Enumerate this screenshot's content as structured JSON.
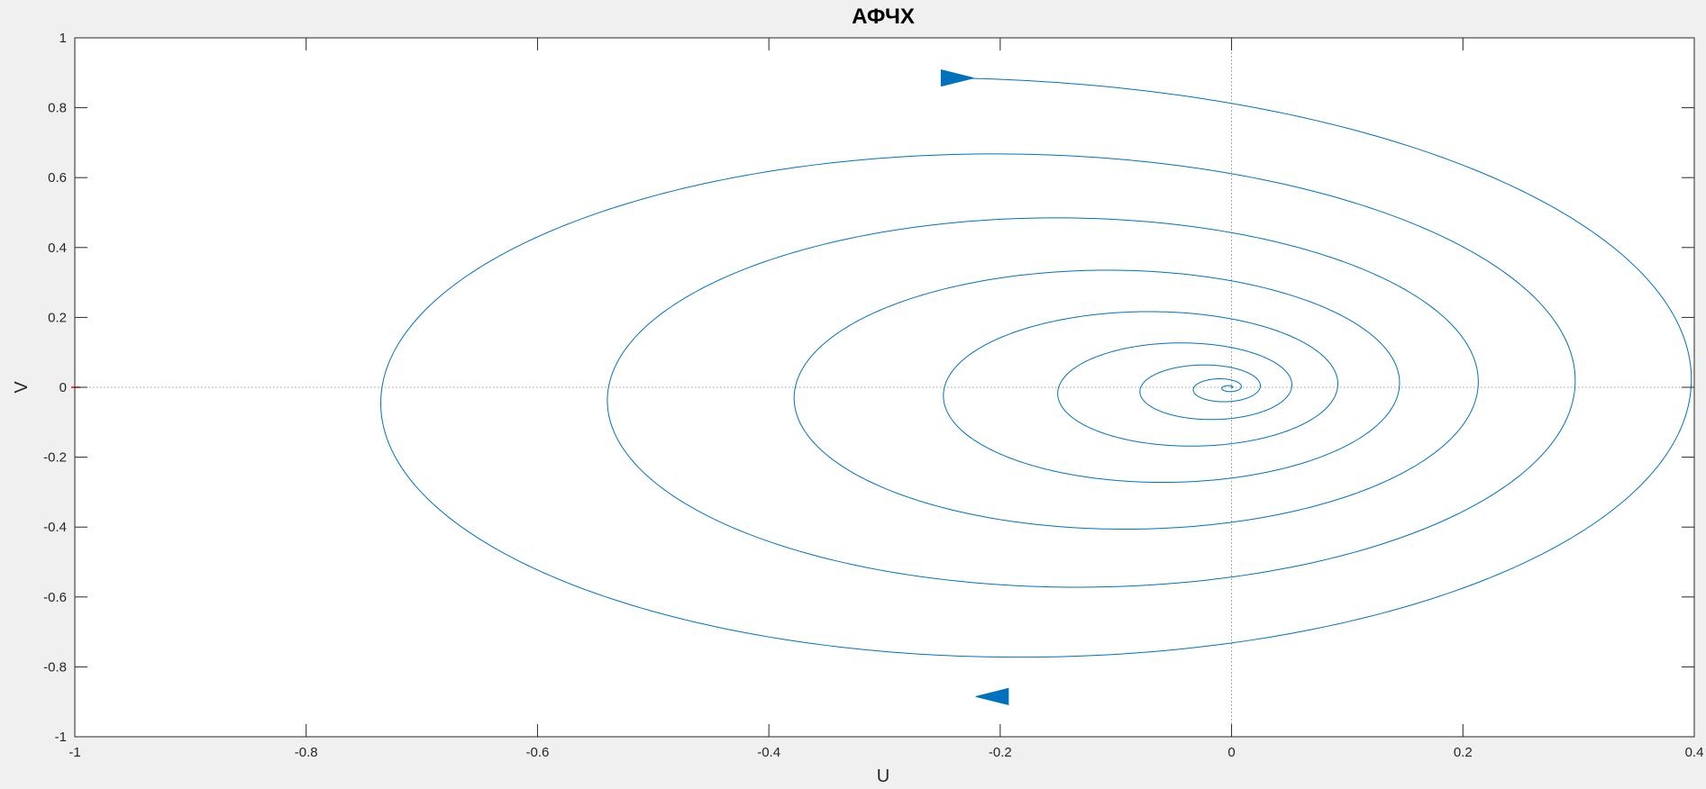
{
  "chart_data": {
    "type": "line",
    "title": "АФЧХ",
    "xlabel": "U",
    "ylabel": "V",
    "xlim": [
      -1,
      0.4
    ],
    "ylim": [
      -1,
      1
    ],
    "xticks": [
      -1,
      -0.8,
      -0.6,
      -0.4,
      -0.2,
      0,
      0.2,
      0.4
    ],
    "yticks": [
      -1,
      -0.8,
      -0.6,
      -0.4,
      -0.2,
      0,
      0.2,
      0.4,
      0.6,
      0.8,
      1
    ],
    "xtick_labels": [
      "-1",
      "-0.8",
      "-0.6",
      "-0.4",
      "-0.2",
      "0",
      "0.2",
      "0.4"
    ],
    "ytick_labels": [
      "-1",
      "-0.8",
      "-0.6",
      "-0.4",
      "-0.2",
      "0",
      "0.2",
      "0.4",
      "0.6",
      "0.8",
      "1"
    ],
    "grid": false,
    "zero_lines": true,
    "series_color": "#0072bd",
    "axes_color": "#262626",
    "zero_line_color": "#7f7f7f",
    "critical_point_color": "#ff0000",
    "critical_point": [
      -1,
      0
    ],
    "spiral": {
      "shape": "spiral",
      "x_center_outer": -0.24,
      "x_center_inner": 0,
      "x_halfwidth_outer": 0.665,
      "x_halfwidth_inner": 0,
      "y_amplitude_outer": 0.885,
      "y_amplitude_inner": 0,
      "turns": 9,
      "direction": "clockwise"
    },
    "arrows": [
      {
        "x": -0.237,
        "y": 0.885,
        "direction": "right"
      },
      {
        "x": -0.207,
        "y": -0.885,
        "direction": "left"
      }
    ]
  }
}
